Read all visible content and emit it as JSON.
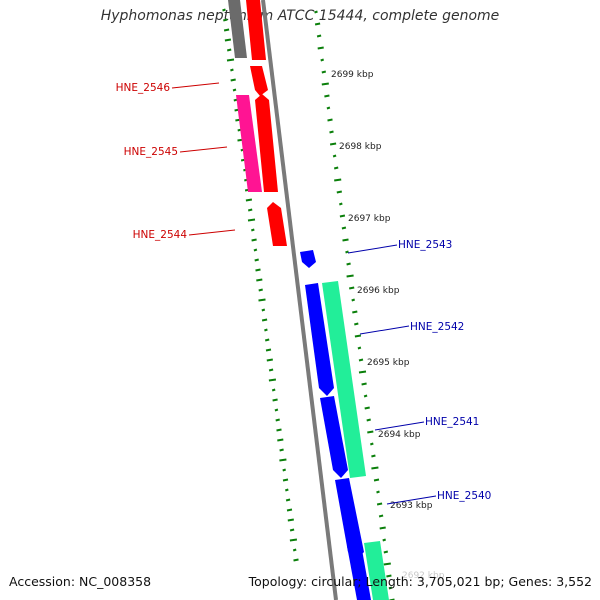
{
  "title": "Hyphomonas neptunium ATCC 15444, complete genome",
  "footer": {
    "accession": "Accession: NC_008358",
    "summary": "Topology: circular; Length: 3,705,021 bp; Genes: 3,552"
  },
  "colors": {
    "gc_plus": "#0a7f0a",
    "backbone": "#7a7a7a",
    "forward_gene": "#ff0000",
    "forward_alt": "#ff1493",
    "reverse_gene": "#0000ff",
    "reverse_alt": "#22ee99",
    "forward_label": "#cc0000",
    "reverse_label": "#0000aa"
  },
  "ruler": [
    {
      "label": "2699 kbp"
    },
    {
      "label": "2698 kbp"
    },
    {
      "label": "2697 kbp"
    },
    {
      "label": "2696 kbp"
    },
    {
      "label": "2695 kbp"
    },
    {
      "label": "2694 kbp"
    },
    {
      "label": "2693 kbp"
    },
    {
      "label": "2692 kbp"
    }
  ],
  "genes": [
    {
      "label": "HNE_2546",
      "strand": "forward"
    },
    {
      "label": "HNE_2545",
      "strand": "forward"
    },
    {
      "label": "HNE_2544",
      "strand": "forward"
    },
    {
      "label": "HNE_2543",
      "strand": "reverse"
    },
    {
      "label": "HNE_2542",
      "strand": "reverse"
    },
    {
      "label": "HNE_2541",
      "strand": "reverse"
    },
    {
      "label": "HNE_2540",
      "strand": "reverse"
    }
  ]
}
